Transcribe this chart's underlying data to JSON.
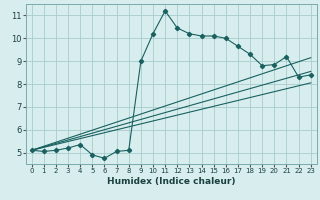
{
  "xlabel": "Humidex (Indice chaleur)",
  "bg_color": "#d8eeee",
  "line_color": "#1a6060",
  "grid_color": "#a8cccc",
  "xlim": [
    -0.5,
    23.5
  ],
  "ylim": [
    4.5,
    11.5
  ],
  "xticks": [
    0,
    1,
    2,
    3,
    4,
    5,
    6,
    7,
    8,
    9,
    10,
    11,
    12,
    13,
    14,
    15,
    16,
    17,
    18,
    19,
    20,
    21,
    22,
    23
  ],
  "yticks": [
    5,
    6,
    7,
    8,
    9,
    10,
    11
  ],
  "curve_x": [
    0,
    1,
    2,
    3,
    4,
    5,
    6,
    7,
    8,
    9,
    10,
    11,
    12,
    13,
    14,
    15,
    16,
    17,
    18,
    19,
    20,
    21,
    22,
    23
  ],
  "curve_y": [
    5.1,
    5.05,
    5.1,
    5.2,
    5.35,
    4.9,
    4.75,
    5.05,
    5.1,
    9.0,
    10.2,
    11.2,
    10.45,
    10.2,
    10.1,
    10.1,
    10.0,
    9.65,
    9.3,
    8.8,
    8.85,
    9.2,
    8.3,
    8.4
  ],
  "line1_x": [
    0,
    23
  ],
  "line1_y": [
    5.1,
    8.05
  ],
  "line2_x": [
    0,
    23
  ],
  "line2_y": [
    5.1,
    8.55
  ],
  "line3_x": [
    0,
    23
  ],
  "line3_y": [
    5.1,
    9.15
  ]
}
